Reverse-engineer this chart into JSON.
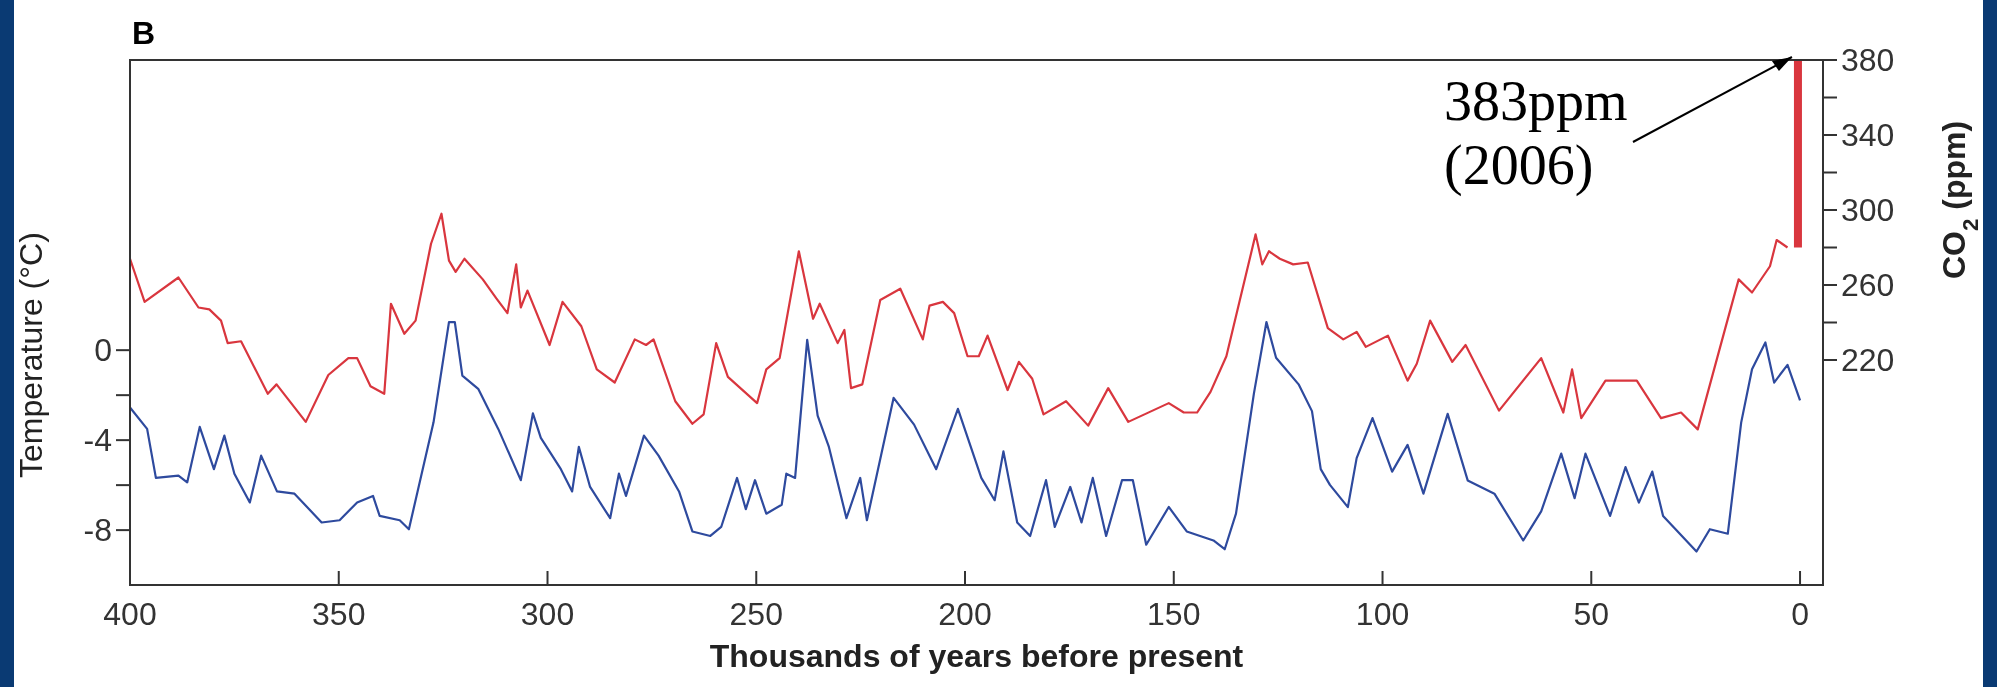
{
  "chart_data": {
    "type": "line",
    "title": "B",
    "xlabel": "Thousands of years before present",
    "ylabel": "Temperature (°C)",
    "y2label": "CO$_{2}$ (ppm)",
    "annotations": [
      {
        "text": "383ppm\n(2006)",
        "x": 0.5,
        "y": 12.9
      }
    ],
    "xlim": [
      400,
      -5.5
    ],
    "xticks": [
      400,
      350,
      300,
      250,
      200,
      150,
      100,
      50,
      0
    ],
    "ylim": [
      -10.44,
      12.9
    ],
    "yticks": [
      -8,
      {
        "value": -6,
        "label": null
      },
      -4,
      {
        "value": -2,
        "label": null
      },
      0
    ],
    "y2lim": [
      100,
      380
    ],
    "y2ticks": [
      220,
      {
        "value": 240,
        "label": null
      },
      260,
      {
        "value": 280,
        "label": null
      },
      300,
      {
        "value": 320,
        "label": null
      },
      340,
      {
        "value": 360,
        "label": null
      },
      380
    ],
    "grid": false,
    "series": [
      {
        "axis": "y2",
        "color": "#d9363e",
        "x": [
          400,
          396.5,
          388.4,
          383.6,
          381,
          378.2,
          376.6,
          373.4,
          367,
          364.9,
          357.9,
          352.5,
          347.7,
          345.6,
          342.4,
          339.1,
          337.5,
          334.3,
          331.6,
          327.9,
          325.4,
          323.6,
          322,
          319.9,
          315.5,
          312.3,
          309.6,
          307.5,
          306.4,
          304.8,
          299.5,
          296.4,
          291.9,
          288.2,
          283.9,
          279.1,
          276.4,
          274.6,
          269.4,
          265.3,
          262.6,
          259.6,
          256.8,
          249.8,
          247.6,
          244.4,
          239.8,
          236.4,
          234.8,
          230.5,
          228.9,
          227.3,
          224.6,
          220.3,
          215.5,
          210.1,
          208.5,
          205.3,
          202.6,
          199.4,
          196.7,
          194.6,
          189.8,
          187.1,
          183.9,
          181.2,
          175.8,
          170.5,
          165.7,
          160.9,
          151.2,
          147.6,
          144.4,
          141.2,
          137.4,
          130.4,
          128.8,
          127.2,
          124.6,
          121.4,
          117.9,
          113.1,
          109.4,
          106.2,
          104,
          98.7,
          94,
          91.8,
          88.6,
          83.3,
          80.1,
          72.1,
          62,
          56.7,
          54.6,
          52.4,
          46.6,
          39.1,
          33.3,
          28.5,
          24.5,
          17.9,
          14.7,
          11.5,
          7.2,
          5.6,
          3
        ],
        "values": [
          274,
          251,
          264,
          248,
          247,
          241,
          229,
          230,
          202,
          207,
          187,
          212,
          221,
          221,
          206,
          202,
          250,
          234,
          241,
          282,
          298,
          273,
          267,
          274,
          263,
          253,
          245,
          271,
          248,
          257,
          228,
          251,
          238,
          215,
          208,
          231,
          228,
          231,
          198,
          186,
          191,
          229,
          211,
          197,
          215,
          221,
          278,
          242,
          250,
          229,
          236,
          205,
          207,
          252,
          258,
          231,
          249,
          251,
          245,
          222,
          222,
          233,
          204,
          219,
          210,
          191,
          198,
          185,
          205,
          187,
          197,
          192,
          192,
          203,
          222,
          287,
          271,
          278,
          274,
          271,
          272,
          237,
          231,
          235,
          227,
          233,
          209,
          218,
          241,
          219,
          228,
          193,
          221,
          192,
          215,
          189,
          209,
          209,
          189,
          192,
          183,
          237,
          263,
          256,
          270,
          284,
          280
        ]
      },
      {
        "type": "bar",
        "axis": "y2",
        "color": "#d9363e",
        "x": [
          0.5
        ],
        "base": [
          280
        ],
        "values": [
          100
        ]
      },
      {
        "color": "#2e4a9e",
        "x": [
          400,
          395.9,
          393.8,
          388.4,
          386.3,
          383.3,
          379.9,
          377.4,
          375,
          371.3,
          368.6,
          364.8,
          360.6,
          354.1,
          349.8,
          345.6,
          341.8,
          340.2,
          335.4,
          333.2,
          327.3,
          323.6,
          322.2,
          320.4,
          316.6,
          311.8,
          306.4,
          303.5,
          301.6,
          296.8,
          294.1,
          292.5,
          289.8,
          285,
          282.9,
          281.2,
          276.9,
          273.4,
          268.5,
          265.3,
          261,
          258.4,
          254.6,
          252.5,
          250.3,
          247.6,
          243.9,
          242.8,
          240.7,
          237.8,
          235.3,
          232.6,
          228.4,
          225.1,
          223.5,
          217.1,
          212.2,
          206.9,
          201.7,
          196.1,
          192.9,
          190.8,
          187.5,
          184.4,
          180.6,
          178.5,
          174.8,
          172.1,
          169.4,
          166.2,
          162.4,
          159.8,
          156.6,
          151.2,
          146.9,
          140.5,
          137.8,
          135.1,
          130.8,
          127.8,
          125.5,
          120.1,
          116.9,
          114.8,
          112.6,
          108.3,
          106.2,
          102.4,
          97.7,
          94,
          90.2,
          84.4,
          79.6,
          73.2,
          66.3,
          62,
          57.2,
          54,
          51.4,
          45.5,
          41.8,
          38.6,
          35.4,
          32.8,
          24.8,
          21.6,
          17.3,
          14.1,
          11.5,
          8.3,
          6.2,
          3,
          0
        ],
        "values": [
          -2.55,
          -3.5,
          -5.68,
          -5.58,
          -5.88,
          -3.41,
          -5.29,
          -3.8,
          -5.49,
          -6.77,
          -4.69,
          -6.28,
          -6.38,
          -7.66,
          -7.56,
          -6.77,
          -6.48,
          -7.37,
          -7.56,
          -7.96,
          -3.21,
          1.25,
          1.25,
          -1.13,
          -1.72,
          -3.5,
          -5.78,
          -2.81,
          -3.9,
          -5.29,
          -6.28,
          -4.3,
          -6.08,
          -7.47,
          -5.49,
          -6.48,
          -3.8,
          -4.69,
          -6.28,
          -8.06,
          -8.26,
          -7.86,
          -5.68,
          -7.07,
          -5.78,
          -7.27,
          -6.87,
          -5.49,
          -5.68,
          0.46,
          -2.91,
          -4.3,
          -7.47,
          -5.68,
          -7.56,
          -2.12,
          -3.31,
          -5.29,
          -2.61,
          -5.68,
          -6.67,
          -4.5,
          -7.66,
          -8.26,
          -5.78,
          -7.86,
          -6.08,
          -7.66,
          -5.68,
          -8.26,
          -5.78,
          -5.78,
          -8.65,
          -6.97,
          -8.06,
          -8.46,
          -8.85,
          -7.27,
          -1.92,
          1.25,
          -0.34,
          -1.52,
          -2.71,
          -5.29,
          -5.99,
          -6.98,
          -4.8,
          -3.02,
          -5.4,
          -4.21,
          -6.38,
          -2.83,
          -5.79,
          -6.38,
          -8.46,
          -7.17,
          -4.6,
          -6.58,
          -4.6,
          -7.37,
          -5.2,
          -6.78,
          -5.4,
          -7.37,
          -8.95,
          -7.96,
          -8.16,
          -3.22,
          -0.85,
          0.34,
          -1.44,
          -0.65,
          -2.23
        ]
      }
    ]
  }
}
